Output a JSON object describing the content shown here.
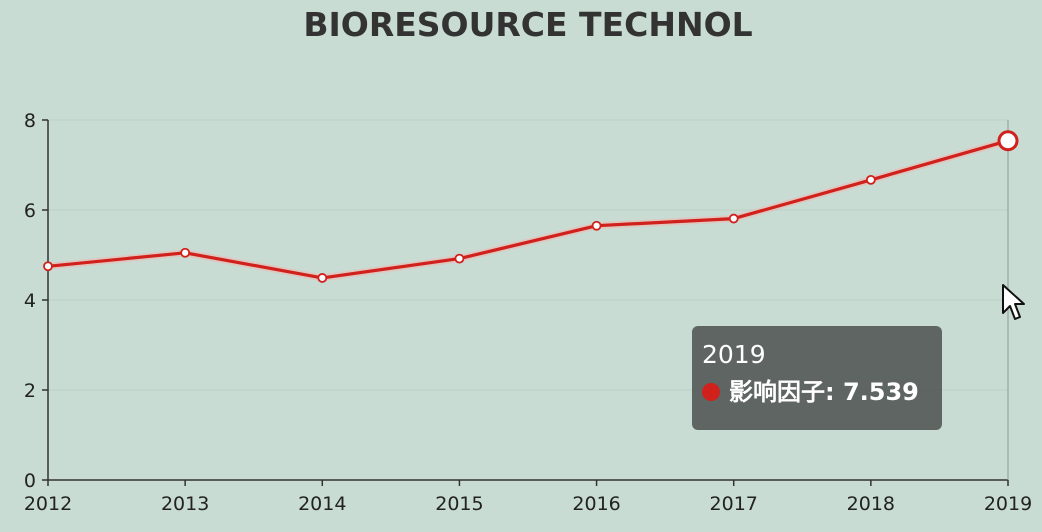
{
  "colors": {
    "line": "#d0211c",
    "axis": "#333333",
    "background": "#c8dcd3"
  },
  "chart_data": {
    "type": "line",
    "title": "BIORESOURCE TECHNOL",
    "x": [
      "2012",
      "2013",
      "2014",
      "2015",
      "2016",
      "2017",
      "2018",
      "2019"
    ],
    "series": [
      {
        "name": "影响因子",
        "values": [
          4.75,
          5.05,
          4.49,
          4.92,
          5.65,
          5.81,
          6.67,
          7.539
        ]
      }
    ],
    "yticks": [
      0,
      2,
      4,
      6,
      8
    ],
    "ylim": [
      0,
      8
    ],
    "grid": false,
    "legend": "none"
  },
  "tooltip": {
    "title": "2019",
    "series_label": "影响因子",
    "value": "7.539"
  },
  "cursor": {
    "icon": "mouse-pointer-icon"
  }
}
